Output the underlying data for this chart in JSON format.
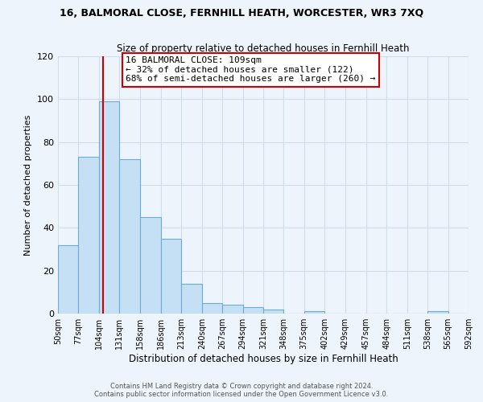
{
  "title1": "16, BALMORAL CLOSE, FERNHILL HEATH, WORCESTER, WR3 7XQ",
  "title2": "Size of property relative to detached houses in Fernhill Heath",
  "xlabel": "Distribution of detached houses by size in Fernhill Heath",
  "ylabel": "Number of detached properties",
  "bar_edges": [
    50,
    77,
    104,
    131,
    158,
    186,
    213,
    240,
    267,
    294,
    321,
    348,
    375,
    402,
    429,
    457,
    484,
    511,
    538,
    565,
    592
  ],
  "bar_heights": [
    32,
    73,
    99,
    72,
    45,
    35,
    14,
    5,
    4,
    3,
    2,
    0,
    1,
    0,
    0,
    0,
    0,
    0,
    1,
    0
  ],
  "bar_color": "#c5dff5",
  "bar_edge_color": "#6aaed6",
  "vline_x": 109,
  "vline_color": "#cc0000",
  "annotation_title": "16 BALMORAL CLOSE: 109sqm",
  "annotation_line1": "← 32% of detached houses are smaller (122)",
  "annotation_line2": "68% of semi-detached houses are larger (260) →",
  "annotation_box_color": "white",
  "annotation_box_edge": "#cc0000",
  "ylim": [
    0,
    120
  ],
  "yticks": [
    0,
    20,
    40,
    60,
    80,
    100,
    120
  ],
  "tick_labels": [
    "50sqm",
    "77sqm",
    "104sqm",
    "131sqm",
    "158sqm",
    "186sqm",
    "213sqm",
    "240sqm",
    "267sqm",
    "294sqm",
    "321sqm",
    "348sqm",
    "375sqm",
    "402sqm",
    "429sqm",
    "457sqm",
    "484sqm",
    "511sqm",
    "538sqm",
    "565sqm",
    "592sqm"
  ],
  "footnote1": "Contains HM Land Registry data © Crown copyright and database right 2024.",
  "footnote2": "Contains public sector information licensed under the Open Government Licence v3.0.",
  "bg_color": "#eef4fb",
  "grid_color": "#d0dce8"
}
